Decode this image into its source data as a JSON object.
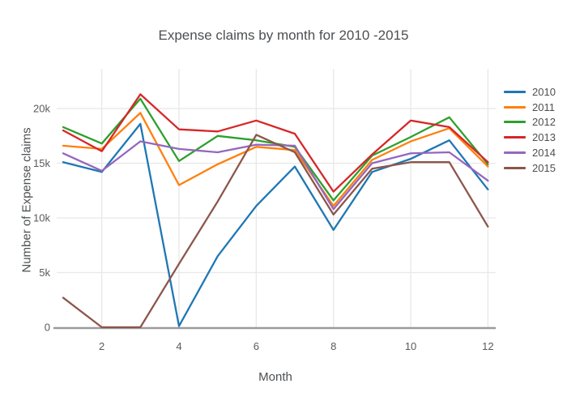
{
  "chart_data": {
    "type": "line",
    "title": "Expense claims by month for 2010 -2015",
    "xlabel": "Month",
    "ylabel": "Number of Expense claims",
    "x": [
      1,
      2,
      3,
      4,
      5,
      6,
      7,
      8,
      9,
      10,
      11,
      12
    ],
    "xlim": [
      1,
      12
    ],
    "ylim": [
      0,
      21500
    ],
    "grid": true,
    "legend_position": "right",
    "xticks": {
      "values": [
        2,
        4,
        6,
        8,
        10,
        12
      ],
      "labels": [
        "2",
        "4",
        "6",
        "8",
        "10",
        "12"
      ]
    },
    "yticks": {
      "values": [
        0,
        5000,
        10000,
        15000,
        20000
      ],
      "labels": [
        "0",
        "5k",
        "10k",
        "15k",
        "20k"
      ]
    },
    "axis_colors": {
      "grid": "#e8e8e8",
      "zeroline": "#9b9b9b",
      "tick_text": "#5a5a5a"
    },
    "series": [
      {
        "name": "2010",
        "color": "#1f77b4",
        "values": [
          15100,
          14200,
          18600,
          100,
          6500,
          11100,
          14700,
          8900,
          14200,
          15400,
          17100,
          12600
        ]
      },
      {
        "name": "2011",
        "color": "#ff7f0e",
        "values": [
          16600,
          16300,
          19600,
          13000,
          14900,
          16500,
          16200,
          11100,
          15300,
          17000,
          18200,
          14700
        ]
      },
      {
        "name": "2012",
        "color": "#2ca02c",
        "values": [
          18300,
          16800,
          20900,
          15200,
          17500,
          17100,
          16500,
          11600,
          15700,
          17400,
          19200,
          14900
        ]
      },
      {
        "name": "2013",
        "color": "#d62728",
        "values": [
          18000,
          16100,
          21300,
          18100,
          17900,
          18900,
          17700,
          12400,
          15800,
          18900,
          18300,
          15100
        ]
      },
      {
        "name": "2014",
        "color": "#9467bd",
        "values": [
          15900,
          14300,
          17000,
          16300,
          16000,
          16700,
          16600,
          10800,
          15000,
          15900,
          16000,
          13400
        ]
      },
      {
        "name": "2015",
        "color": "#8c564b",
        "values": [
          2700,
          0,
          0,
          5800,
          11500,
          17600,
          16000,
          10300,
          14500,
          15100,
          15100,
          9200
        ]
      }
    ]
  }
}
